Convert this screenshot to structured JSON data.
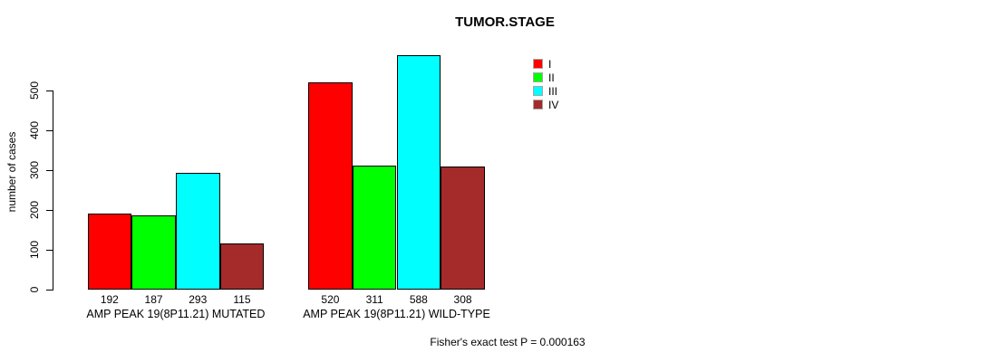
{
  "chart_data": {
    "type": "bar",
    "title": "TUMOR.STAGE",
    "xlabel": "",
    "ylabel": "number of cases",
    "ylim": [
      0,
      500
    ],
    "yticks": [
      0,
      100,
      200,
      300,
      400,
      500
    ],
    "grid": false,
    "legend_position": "top-right",
    "categories": [
      "AMP PEAK 19(8P11.21) MUTATED",
      "AMP PEAK 19(8P11.21) WILD-TYPE"
    ],
    "series": [
      {
        "name": "I",
        "color": "#ff0000",
        "values": [
          192,
          520
        ]
      },
      {
        "name": "II",
        "color": "#00ff00",
        "values": [
          187,
          311
        ]
      },
      {
        "name": "III",
        "color": "#00ffff",
        "values": [
          293,
          588
        ]
      },
      {
        "name": "IV",
        "color": "#a52a2a",
        "values": [
          115,
          308
        ]
      }
    ],
    "bar_value_labels": true,
    "annotation": "Fisher's exact test P = 0.000163"
  }
}
